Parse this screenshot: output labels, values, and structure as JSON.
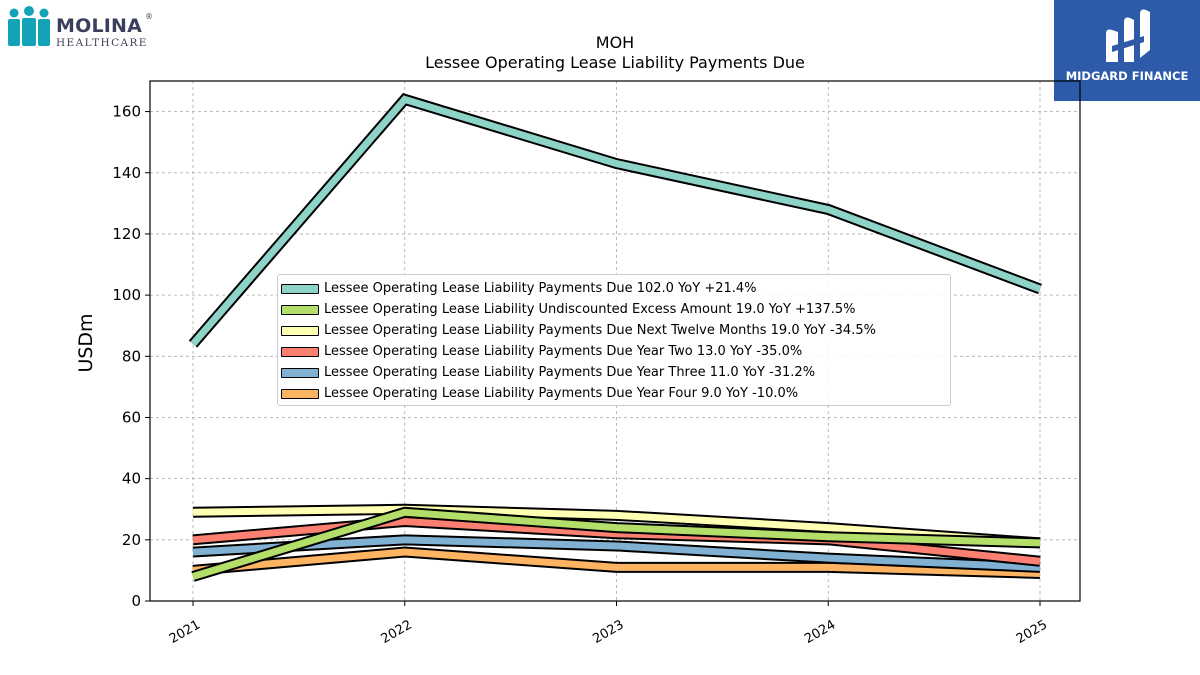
{
  "header": {
    "brand_left": {
      "name": "MOLINA",
      "registered": "®",
      "sub": "HEALTHCARE",
      "color": "#12a3b8"
    },
    "brand_right": {
      "name": "MIDGARD FINANCE",
      "bg": "#2e5ba9"
    }
  },
  "chart_data": {
    "type": "line",
    "title": "MOH",
    "subtitle": "Lessee Operating Lease Liability Payments Due",
    "ylabel": "USDm",
    "xlabel": "",
    "x": [
      "2021",
      "2022",
      "2023",
      "2024",
      "2025"
    ],
    "ylim": [
      0,
      170
    ],
    "yticks": [
      0,
      20,
      40,
      60,
      80,
      100,
      120,
      140,
      160
    ],
    "grid": true,
    "legend_position": "center",
    "series": [
      {
        "name": "Lessee Operating Lease Liability Payments Due",
        "values": [
          84,
          164,
          143,
          128,
          102
        ],
        "color": "#8dd3c7",
        "legend": "Lessee Operating Lease Liability Payments Due  102.0 YoY +21.4%"
      },
      {
        "name": "Lessee Operating Lease Liability Undiscounted Excess Amount",
        "values": [
          8,
          29,
          24,
          21,
          19
        ],
        "color": "#b3de69",
        "legend": "Lessee Operating Lease Liability Undiscounted Excess Amount  19.0 YoY +137.5%"
      },
      {
        "name": "Lessee Operating Lease Liability Payments Due Next Twelve Months",
        "values": [
          29,
          30,
          28,
          24,
          19
        ],
        "color": "#ffffb3",
        "legend": "Lessee Operating Lease Liability Payments Due Next Twelve Months  19.0 YoY -34.5%"
      },
      {
        "name": "Lessee Operating Lease Liability Payments Due Year Two",
        "values": [
          20,
          26,
          22,
          20,
          13
        ],
        "color": "#fb8072",
        "legend": "Lessee Operating Lease Liability Payments Due Year Two  13.0 YoY -35.0%"
      },
      {
        "name": "Lessee Operating Lease Liability Payments Due Year Three",
        "values": [
          16,
          20,
          18,
          14,
          11
        ],
        "color": "#80b1d3",
        "legend": "Lessee Operating Lease Liability Payments Due Year Three  11.0 YoY -31.2%"
      },
      {
        "name": "Lessee Operating Lease Liability Payments Due Year Four",
        "values": [
          10,
          16,
          11,
          11,
          9
        ],
        "color": "#fdb462",
        "legend": "Lessee Operating Lease Liability Payments Due Year Four  9.0 YoY -10.0%"
      }
    ]
  }
}
